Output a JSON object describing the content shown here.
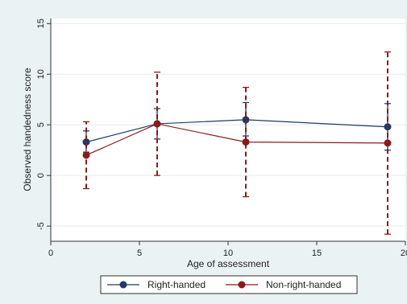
{
  "chart_data": {
    "type": "line",
    "title": "",
    "xlabel": "Age of assessment",
    "ylabel": "Observed handedness score",
    "xlim": [
      0,
      20
    ],
    "ylim": [
      -6.5,
      15.5
    ],
    "x_ticks": [
      0,
      5,
      10,
      15,
      20
    ],
    "y_ticks": [
      -5,
      0,
      5,
      10,
      15
    ],
    "x_tick_labels": [
      "0",
      "5",
      "10",
      "15",
      "20"
    ],
    "y_tick_labels": [
      "-5",
      "0",
      "5",
      "10",
      "15"
    ],
    "grid": "horizontal",
    "legend_position": "bottom",
    "series": [
      {
        "name": "Right-handed",
        "color": "#1f3a68",
        "x": [
          2,
          6,
          11,
          19
        ],
        "y": [
          3.3,
          5.1,
          5.5,
          4.8
        ],
        "lower": [
          2.3,
          3.6,
          3.9,
          2.5
        ],
        "upper": [
          4.4,
          6.6,
          7.2,
          7.1
        ]
      },
      {
        "name": "Non-right-handed",
        "color": "#8b1a1a",
        "x": [
          2,
          6,
          11,
          19
        ],
        "y": [
          2.0,
          5.1,
          3.3,
          3.2
        ],
        "lower": [
          -1.3,
          0.0,
          -2.1,
          -5.8
        ],
        "upper": [
          5.3,
          10.2,
          8.7,
          12.2
        ]
      }
    ]
  }
}
